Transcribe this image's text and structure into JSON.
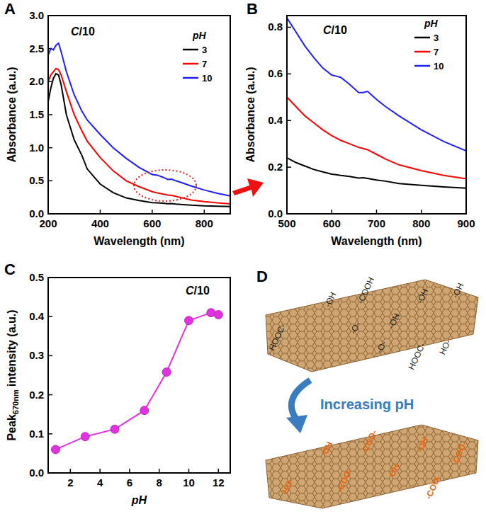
{
  "panel_labels": [
    "A",
    "B",
    "C",
    "D"
  ],
  "chart_data": [
    {
      "type": "line",
      "annotation": "C/10",
      "x_label": "Wavelength (nm)",
      "y_label": "Absorbance (a.u.)",
      "legend_title": "pH",
      "legend": "top-right",
      "x": [
        200,
        210,
        220,
        230,
        240,
        250,
        270,
        300,
        330,
        350,
        400,
        450,
        500,
        550,
        600,
        620,
        640,
        660,
        675,
        690,
        700,
        750,
        800,
        850,
        900
      ],
      "series": [
        {
          "name": "3",
          "color": "#000000",
          "line_style": "solid",
          "values": [
            1.7,
            1.9,
            2.05,
            2.12,
            2.1,
            1.95,
            1.5,
            1.12,
            0.88,
            0.68,
            0.45,
            0.32,
            0.24,
            0.2,
            0.17,
            0.165,
            0.16,
            0.153,
            0.155,
            0.148,
            0.145,
            0.13,
            0.12,
            0.115,
            0.11
          ]
        },
        {
          "name": "7",
          "color": "#ff0000",
          "line_style": "solid",
          "values": [
            2.0,
            2.1,
            2.15,
            2.2,
            2.18,
            2.1,
            1.85,
            1.5,
            1.25,
            1.1,
            0.85,
            0.65,
            0.5,
            0.41,
            0.335,
            0.315,
            0.3,
            0.285,
            0.278,
            0.265,
            0.255,
            0.21,
            0.185,
            0.165,
            0.15
          ]
        },
        {
          "name": "10",
          "color": "#1f1fff",
          "line_style": "solid",
          "values": [
            2.4,
            2.5,
            2.48,
            2.55,
            2.58,
            2.45,
            2.15,
            1.8,
            1.55,
            1.42,
            1.2,
            1.0,
            0.84,
            0.7,
            0.595,
            0.585,
            0.555,
            0.52,
            0.525,
            0.5,
            0.49,
            0.42,
            0.36,
            0.31,
            0.27
          ]
        }
      ],
      "xlim": [
        200,
        900
      ],
      "xticks": [
        200,
        400,
        600,
        800
      ],
      "ylim": [
        0,
        3
      ],
      "yticks": [
        {
          "value": 0,
          "label": "0.0"
        },
        {
          "value": 0.5,
          "label": "0.5"
        },
        {
          "value": 1,
          "label": "1.0"
        },
        {
          "value": 1.5,
          "label": "1.5"
        },
        {
          "value": 2,
          "label": "2.0"
        },
        {
          "value": 2.5,
          "label": "2.5"
        },
        {
          "value": 3,
          "label": "3.0"
        }
      ]
    },
    {
      "type": "line",
      "annotation": "C/10",
      "x_label": "Wavelength (nm)",
      "y_label": "Absorbance (a.u.)",
      "legend_title": "pH",
      "legend": "top-right",
      "x": [
        500,
        520,
        540,
        560,
        580,
        600,
        610,
        620,
        640,
        660,
        670,
        680,
        700,
        720,
        750,
        800,
        850,
        900
      ],
      "series": [
        {
          "name": "3",
          "color": "#000000",
          "line_style": "solid",
          "values": [
            0.24,
            0.22,
            0.205,
            0.19,
            0.18,
            0.17,
            0.168,
            0.165,
            0.16,
            0.153,
            0.155,
            0.152,
            0.145,
            0.14,
            0.13,
            0.122,
            0.115,
            0.11
          ]
        },
        {
          "name": "7",
          "color": "#ff0000",
          "line_style": "solid",
          "values": [
            0.5,
            0.46,
            0.42,
            0.39,
            0.36,
            0.335,
            0.325,
            0.315,
            0.3,
            0.285,
            0.28,
            0.275,
            0.255,
            0.235,
            0.21,
            0.185,
            0.165,
            0.15
          ]
        },
        {
          "name": "10",
          "color": "#1f1fff",
          "line_style": "solid",
          "values": [
            0.84,
            0.78,
            0.72,
            0.67,
            0.625,
            0.595,
            0.59,
            0.585,
            0.555,
            0.52,
            0.52,
            0.525,
            0.49,
            0.46,
            0.42,
            0.36,
            0.31,
            0.27
          ]
        }
      ],
      "xlim": [
        500,
        900
      ],
      "xticks": [
        500,
        600,
        700,
        800,
        900
      ],
      "ylim": [
        0,
        0.85
      ],
      "yticks": [
        {
          "value": 0,
          "label": "0.0"
        },
        {
          "value": 0.2,
          "label": "0.2"
        },
        {
          "value": 0.4,
          "label": "0.4"
        },
        {
          "value": 0.6,
          "label": "0.6"
        },
        {
          "value": 0.8,
          "label": "0.8"
        }
      ]
    },
    {
      "type": "line",
      "annotation": "C/10",
      "x_label": "pH",
      "y_label": "Peak670nm intensity (a.u.)",
      "y_label_subscript": "670nm",
      "x": [
        1,
        3,
        5,
        7,
        8.5,
        10,
        11.5,
        12
      ],
      "series": [
        {
          "color": "#e033e0",
          "marker": "circle",
          "line_style": "solid",
          "values": [
            0.06,
            0.093,
            0.112,
            0.16,
            0.258,
            0.39,
            0.41,
            0.405
          ]
        }
      ],
      "xlim": [
        0.5,
        12.8
      ],
      "xticks": [
        2,
        4,
        6,
        8,
        10,
        12
      ],
      "ylim": [
        0,
        0.5
      ],
      "yticks": [
        {
          "value": 0,
          "label": "0.0"
        },
        {
          "value": 0.1,
          "label": "0.1"
        },
        {
          "value": 0.2,
          "label": "0.2"
        },
        {
          "value": 0.3,
          "label": "0.3"
        },
        {
          "value": 0.4,
          "label": "0.4"
        },
        {
          "value": 0.5,
          "label": "0.5"
        }
      ]
    }
  ],
  "diagram": {
    "arrow_label": "Increasing pH",
    "top_sheet_groups": [
      "-OH",
      "-COOH",
      "-OH",
      "-OH",
      "HOOC-",
      "-O-",
      "-OH",
      "-O-",
      "HOOC-",
      "HO-"
    ],
    "bottom_sheet_groups": [
      "-OH",
      "-COO-",
      "-OH",
      "-COO-",
      "HO-",
      "-COO-",
      "OH",
      "-COO-"
    ]
  }
}
